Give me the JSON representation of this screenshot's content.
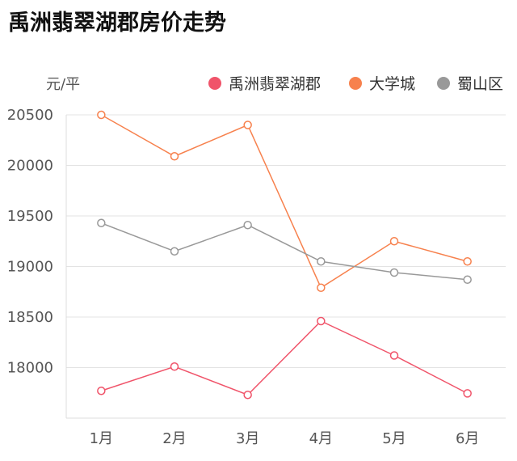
{
  "title": "禹洲翡翠湖郡房价走势",
  "chart_data": {
    "type": "line",
    "title": "禹洲翡翠湖郡房价走势",
    "ylabel": "元/平",
    "xlabel": "",
    "categories": [
      "1月",
      "2月",
      "3月",
      "4月",
      "5月",
      "6月"
    ],
    "ylim": [
      17500,
      20500
    ],
    "yticks": [
      18000,
      18500,
      19000,
      19500,
      20000,
      20500
    ],
    "grid": true,
    "legend_position": "top-right",
    "series": [
      {
        "name": "禹洲翡翠湖郡",
        "color": "#f0546a",
        "values": [
          17770,
          18010,
          17730,
          18460,
          18120,
          17745
        ]
      },
      {
        "name": "大学城",
        "color": "#f7814d",
        "values": [
          20500,
          20090,
          20400,
          18790,
          19250,
          19050
        ]
      },
      {
        "name": "蜀山区",
        "color": "#999999",
        "values": [
          19430,
          19150,
          19410,
          19050,
          18940,
          18870
        ]
      }
    ]
  }
}
